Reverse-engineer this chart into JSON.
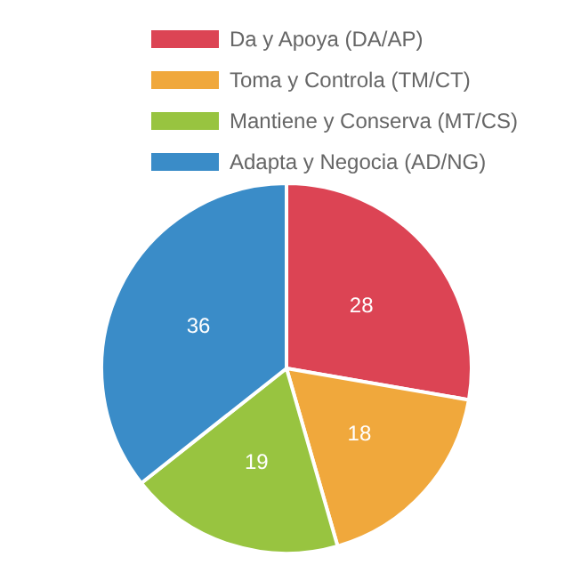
{
  "chart_data": {
    "type": "pie",
    "categories": [
      "Da y Apoya (DA/AP)",
      "Toma y Controla (TM/CT)",
      "Mantiene y Conserva (MT/CS)",
      "Adapta y Negocia (AD/NG)"
    ],
    "values": [
      28,
      18,
      19,
      36
    ],
    "colors": [
      "#dc4454",
      "#f0a83c",
      "#98c440",
      "#3a8cc8"
    ],
    "data_labels": true,
    "legend": "top"
  }
}
